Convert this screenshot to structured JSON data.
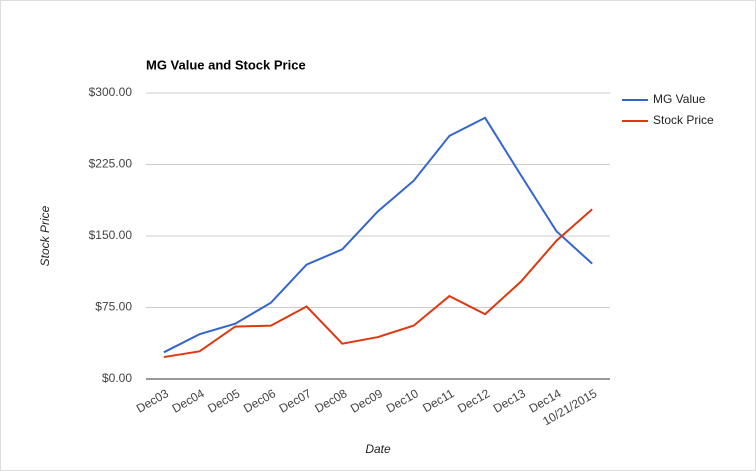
{
  "chart_data": {
    "type": "line",
    "title": "MG Value and Stock Price",
    "x_label": "Date",
    "y_label": "Stock Price",
    "categories": [
      "Dec03",
      "Dec04",
      "Dec05",
      "Dec06",
      "Dec07",
      "Dec08",
      "Dec09",
      "Dec10",
      "Dec11",
      "Dec12",
      "Dec13",
      "Dec14",
      "10/21/2015"
    ],
    "series": [
      {
        "name": "MG Value",
        "color": "#3366cc",
        "values": [
          28,
          47,
          58,
          80,
          120,
          136,
          176,
          208,
          255,
          274,
          214,
          155,
          121
        ]
      },
      {
        "name": "Stock Price",
        "color": "#dc3912",
        "values": [
          23,
          29,
          55,
          56,
          76,
          37,
          44,
          56,
          87,
          68,
          102,
          145,
          178
        ]
      }
    ],
    "ylim": [
      0,
      300
    ],
    "yticks": [
      {
        "value": 0,
        "label": "$0.00"
      },
      {
        "value": 75,
        "label": "$75.00"
      },
      {
        "value": 150,
        "label": "$150.00"
      },
      {
        "value": 225,
        "label": "$225.00"
      },
      {
        "value": 300,
        "label": "$300.00"
      }
    ],
    "grid": true,
    "legend": "right"
  }
}
